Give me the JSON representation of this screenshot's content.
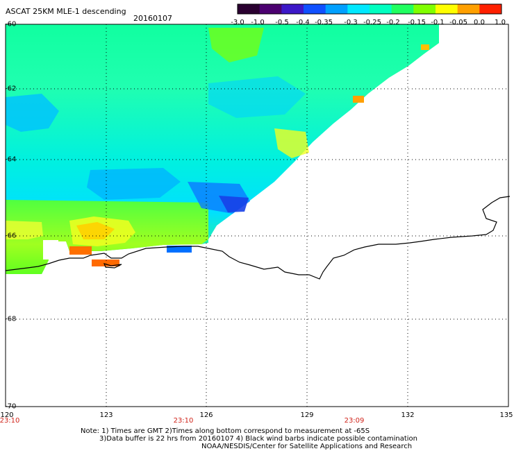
{
  "header": {
    "title": "ASCAT 25KM MLE-1 descending",
    "date": "20160107"
  },
  "colorbar": {
    "tick_labels": [
      "-3.0",
      "-1.0",
      "-0.5",
      "-0.4",
      "-0.35",
      "-0.3",
      "-0.25",
      "-0.2",
      "-0.15",
      "-0.1",
      "-0.05",
      "0.0",
      "1.0"
    ],
    "colors": [
      "#2a0030",
      "#4b0070",
      "#3c18c8",
      "#1050ff",
      "#00a0ff",
      "#00e8ff",
      "#00ffc0",
      "#20ff60",
      "#80ff00",
      "#ffff00",
      "#ffa000",
      "#ff2000"
    ]
  },
  "axes": {
    "lat_labels": [
      "-60",
      "-62",
      "-64",
      "-66",
      "-68",
      "-70"
    ],
    "lon_labels": [
      "120",
      "123",
      "126",
      "129",
      "132",
      "135"
    ],
    "time_labels": [
      "23:10",
      "23:10",
      "23:09"
    ]
  },
  "notes": {
    "line1": "Note: 1) Times are GMT 2)Times along bottom correspond to measurement at -65S",
    "line2": "3)Data buffer is 22 hrs from 20160107 4) Black wind barbs indicate possible contamination",
    "line3": "NOAA/NESDIS/Center for Satellite Applications and Research"
  }
}
